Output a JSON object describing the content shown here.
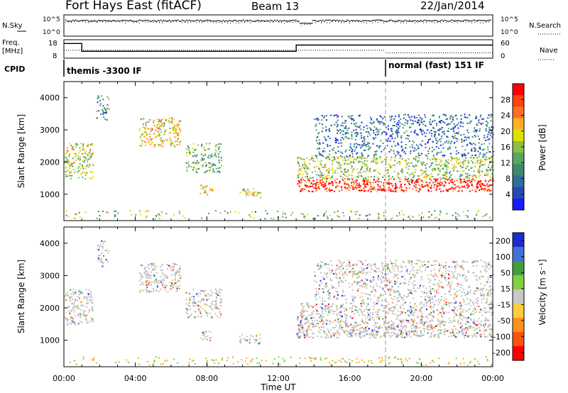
{
  "header": {
    "station": "Fort Hays East (fitACF)",
    "beam": "Beam 13",
    "date": "22/Jan/2014"
  },
  "status_panels": {
    "nsky_label": "N.Sky",
    "nsky_ticks": [
      "10^5",
      "10^0"
    ],
    "nsearch_label": "N.Search",
    "nsearch_ticks": [
      "10^5",
      "10^0"
    ],
    "freq_label": "Freq.",
    "freq_unit": "[MHz]",
    "freq_ticks": [
      "18",
      "8"
    ],
    "nave_label": "Nave",
    "nave_ticks": [
      "60",
      "0"
    ],
    "cpid_label": "CPID",
    "cpid_segments": [
      {
        "name": "themis -3300 IF",
        "start_hour": 0,
        "end_hour": 18.0
      },
      {
        "name": "normal (fast) 151 IF",
        "start_hour": 18.0,
        "end_hour": 24
      }
    ],
    "freq_series": [
      {
        "from_hour": 0,
        "to_hour": 1.0,
        "mhz": 16.5
      },
      {
        "from_hour": 1.0,
        "to_hour": 13.0,
        "mhz": 11.5
      },
      {
        "from_hour": 13.0,
        "to_hour": 24,
        "mhz": 15.5
      }
    ],
    "nave_series": [
      {
        "from_hour": 0,
        "to_hour": 18.0,
        "value": 25
      },
      {
        "from_hour": 18.0,
        "to_hour": 24,
        "value": 15
      }
    ],
    "nsky_level": 0.75,
    "nsearch_level": 0.68
  },
  "chart_data": [
    {
      "type": "heatmap",
      "parameter": "Power",
      "ylabel": "Slant Range [km]",
      "xlabel": "Time UT",
      "ylim": [
        180,
        4500
      ],
      "y_ticks": [
        1000,
        2000,
        3000,
        4000
      ],
      "x_ticks_hours": [
        0,
        4,
        8,
        12,
        16,
        20,
        24
      ],
      "x_tick_labels": [
        "00:00",
        "04:00",
        "08:00",
        "12:00",
        "16:00",
        "20:00",
        "00:00"
      ],
      "colorbar": {
        "label": "Power [dB]",
        "ticks": [
          "4",
          "8",
          "12",
          "16",
          "20",
          "24",
          "28"
        ],
        "colors": [
          "#1a1aff",
          "#2848b8",
          "#2e6e9a",
          "#3c8a6e",
          "#56a860",
          "#8cc040",
          "#e0e000",
          "#ffb020",
          "#ff7020",
          "#ff4010",
          "#ff0000"
        ]
      },
      "scatter_regions": [
        {
          "t0": 0.0,
          "t1": 1.6,
          "r0": 1500,
          "r1": 2600,
          "level": 0.55
        },
        {
          "t0": 1.8,
          "t1": 2.5,
          "r0": 3300,
          "r1": 4100,
          "level": 0.3
        },
        {
          "t0": 4.2,
          "t1": 6.5,
          "r0": 2500,
          "r1": 3400,
          "level": 0.6
        },
        {
          "t0": 6.8,
          "t1": 8.8,
          "r0": 1700,
          "r1": 2600,
          "level": 0.4
        },
        {
          "t0": 7.6,
          "t1": 8.3,
          "r0": 1000,
          "r1": 1300,
          "level": 0.7
        },
        {
          "t0": 9.8,
          "t1": 11.0,
          "r0": 900,
          "r1": 1200,
          "level": 0.65
        },
        {
          "t0": 13.0,
          "t1": 24.0,
          "r0": 1100,
          "r1": 1500,
          "level": 0.95
        },
        {
          "t0": 13.0,
          "t1": 24.0,
          "r0": 1500,
          "r1": 2200,
          "level": 0.5
        },
        {
          "t0": 14.0,
          "t1": 24.0,
          "r0": 2200,
          "r1": 3500,
          "level": 0.2
        }
      ]
    },
    {
      "type": "heatmap",
      "parameter": "Velocity",
      "ylabel": "Slant Range [km]",
      "xlabel": "Time UT",
      "ylim": [
        180,
        4500
      ],
      "y_ticks": [
        1000,
        2000,
        3000,
        4000
      ],
      "x_ticks_hours": [
        0,
        4,
        8,
        12,
        16,
        20,
        24
      ],
      "x_tick_labels": [
        "00:00",
        "04:00",
        "08:00",
        "12:00",
        "16:00",
        "20:00",
        "00:00"
      ],
      "colorbar": {
        "label": "Velocity [m s⁻¹]",
        "ticks": [
          "200",
          "100",
          "50",
          "15",
          "-15",
          "-50",
          "-100",
          "-200"
        ],
        "colors": [
          "#1c2ccc",
          "#4070d8",
          "#40a040",
          "#80d040",
          "#c8c8c8",
          "#ffcc40",
          "#ff9020",
          "#ff5010",
          "#ff0000"
        ]
      },
      "ground_scatter_color": "#bfbfbf"
    }
  ],
  "axes": {
    "time_label": "Time UT"
  }
}
